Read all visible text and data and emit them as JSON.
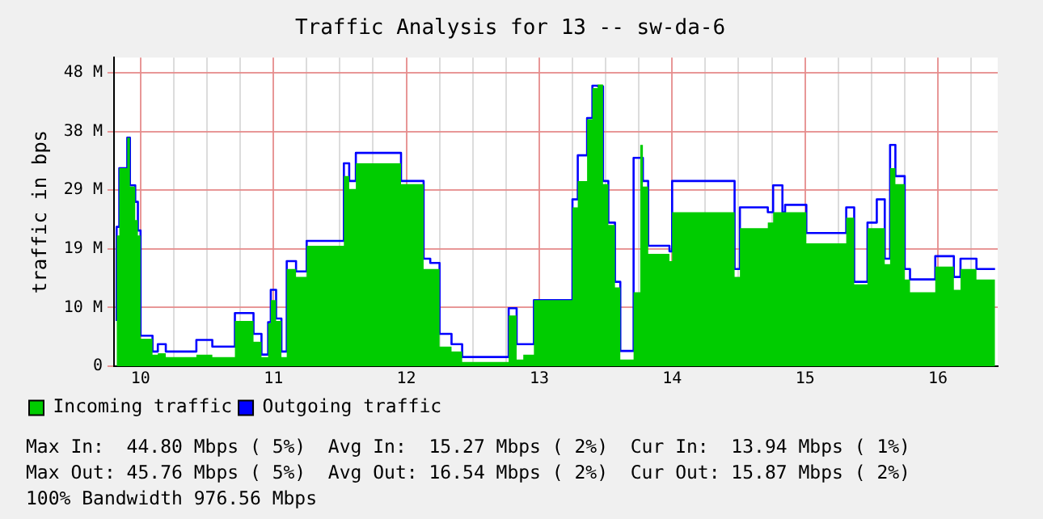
{
  "chart_data": {
    "type": "step",
    "title": "Traffic Analysis for 13 -- sw-da-6",
    "ylabel": "traffic in bps",
    "xlim": [
      9.8,
      16.45
    ],
    "ylim": [
      0,
      50.5
    ],
    "xticks": [
      10,
      {
        "value": 10.25,
        "label": null
      },
      {
        "value": 10.5,
        "label": null
      },
      {
        "value": 10.75,
        "label": null
      },
      11,
      {
        "value": 11.25,
        "label": null
      },
      {
        "value": 11.5,
        "label": null
      },
      {
        "value": 11.75,
        "label": null
      },
      12,
      {
        "value": 12.25,
        "label": null
      },
      {
        "value": 12.5,
        "label": null
      },
      {
        "value": 12.75,
        "label": null
      },
      13,
      {
        "value": 13.25,
        "label": null
      },
      {
        "value": 13.5,
        "label": null
      },
      {
        "value": 13.75,
        "label": null
      },
      14,
      {
        "value": 14.25,
        "label": null
      },
      {
        "value": 14.5,
        "label": null
      },
      {
        "value": 14.75,
        "label": null
      },
      15,
      {
        "value": 15.25,
        "label": null
      },
      {
        "value": 15.5,
        "label": null
      },
      {
        "value": 15.75,
        "label": null
      },
      16,
      {
        "value": 16.25,
        "label": null
      }
    ],
    "yticks": [
      {
        "value": 0,
        "label": "0"
      },
      {
        "value": 9.6,
        "label": "10 M"
      },
      {
        "value": 19.2,
        "label": "19 M"
      },
      {
        "value": 28.8,
        "label": "29 M"
      },
      {
        "value": 38.4,
        "label": "38 M"
      },
      {
        "value": 48,
        "label": "48 M"
      }
    ],
    "grid": true,
    "legend": "bottom",
    "series": [
      {
        "name": "Incoming traffic",
        "type": "area",
        "color": "#00cc00",
        "x": [
          9.82,
          9.84,
          9.9,
          9.92,
          9.96,
          9.98,
          10,
          10.09,
          10.13,
          10.19,
          10.42,
          10.54,
          10.71,
          10.85,
          10.91,
          10.96,
          10.98,
          11.02,
          11.06,
          11.1,
          11.17,
          11.25,
          11.53,
          11.57,
          11.62,
          11.96,
          12.13,
          12.18,
          12.25,
          12.34,
          12.42,
          12.77,
          12.83,
          12.88,
          12.96,
          13.25,
          13.29,
          13.36,
          13.4,
          13.44,
          13.48,
          13.52,
          13.57,
          13.61,
          13.71,
          13.76,
          13.78,
          13.82,
          13.98,
          14,
          14.47,
          14.51,
          14.72,
          14.76,
          15.01,
          15.31,
          15.37,
          15.47,
          15.54,
          15.6,
          15.64,
          15.68,
          15.75,
          15.79,
          15.98,
          16.12,
          16.17,
          16.29,
          16.35,
          16.43
        ],
        "values": [
          5.3,
          21.4,
          32.4,
          37.4,
          29.4,
          23.9,
          21.4,
          4.5,
          1.9,
          2.1,
          1.5,
          1.9,
          1.5,
          7.4,
          4.0,
          1.5,
          7.0,
          10.8,
          7.4,
          1.5,
          15.9,
          14.6,
          19.7,
          31.1,
          29.0,
          33.2,
          29.8,
          15.9,
          15.9,
          3.2,
          2.4,
          0.7,
          8.3,
          1.1,
          1.9,
          10.8,
          26.0,
          30.3,
          40.4,
          45.5,
          46.1,
          29.8,
          23.1,
          12.9,
          1.1,
          12.1,
          36.2,
          29.4,
          18.4,
          17.2,
          25.2,
          14.6,
          22.6,
          23.5,
          25.2,
          20.1,
          24.3,
          13.4,
          22.6,
          22.6,
          16.7,
          32.4,
          29.8,
          14.2,
          12.1,
          16.3,
          12.5,
          15.9,
          14.2,
          14.2
        ]
      },
      {
        "name": "Outgoing traffic",
        "type": "step",
        "color": "#0000ff",
        "x": [
          9.82,
          9.84,
          9.9,
          9.92,
          9.96,
          9.98,
          10,
          10.09,
          10.13,
          10.19,
          10.42,
          10.54,
          10.71,
          10.85,
          10.91,
          10.96,
          10.98,
          11.02,
          11.06,
          11.1,
          11.17,
          11.25,
          11.53,
          11.57,
          11.62,
          11.96,
          12.13,
          12.18,
          12.25,
          12.34,
          12.42,
          12.77,
          12.83,
          12.88,
          12.96,
          13.25,
          13.29,
          13.36,
          13.4,
          13.44,
          13.48,
          13.52,
          13.57,
          13.61,
          13.71,
          13.78,
          13.82,
          13.98,
          14,
          14.47,
          14.51,
          14.72,
          14.76,
          14.83,
          14.85,
          15.01,
          15.31,
          15.37,
          15.47,
          15.54,
          15.6,
          15.64,
          15.68,
          15.75,
          15.79,
          15.98,
          16.12,
          16.17,
          16.29,
          16.35,
          16.43
        ],
        "values": [
          7.4,
          22.8,
          32.4,
          37.4,
          29.6,
          26.9,
          22.2,
          5.0,
          2.4,
          3.6,
          2.4,
          4.3,
          3.2,
          8.7,
          5.3,
          1.9,
          7.2,
          12.5,
          7.8,
          2.4,
          17.2,
          15.5,
          20.5,
          33.2,
          30.3,
          34.9,
          30.3,
          17.6,
          16.9,
          5.3,
          3.6,
          1.5,
          9.5,
          3.6,
          3.6,
          10.8,
          27.3,
          34.5,
          40.6,
          45.9,
          45.8,
          30.3,
          23.5,
          13.8,
          2.5,
          34.1,
          30.3,
          19.7,
          18.8,
          30.3,
          15.9,
          26.0,
          25.2,
          29.6,
          25.2,
          26.4,
          21.8,
          26.0,
          13.8,
          23.5,
          27.3,
          17.6,
          36.2,
          31.1,
          15.9,
          14.2,
          18.0,
          14.6,
          17.6,
          15.9,
          15.9
        ]
      }
    ],
    "annotations": [
      "Max In:  44.80 Mbps ( 5%)  Avg In:  15.27 Mbps ( 2%)  Cur In:  13.94 Mbps ( 1%)",
      "Max Out: 45.76 Mbps ( 5%)  Avg Out: 16.54 Mbps ( 2%)  Cur Out: 15.87 Mbps ( 2%)",
      "100% Bandwidth 976.56 Mbps"
    ]
  }
}
